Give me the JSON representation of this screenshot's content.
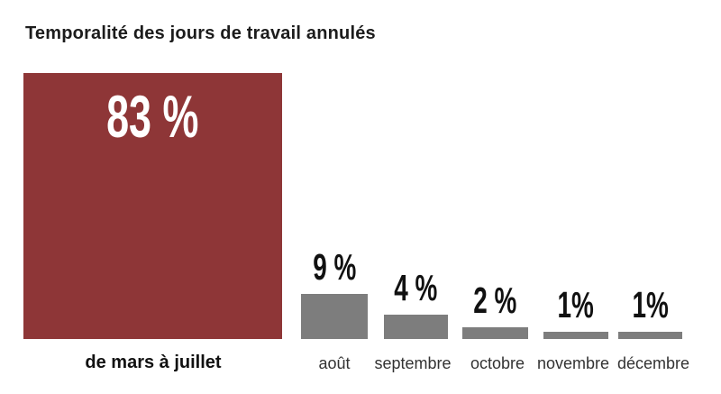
{
  "title": "Temporalité des jours de travail annulés",
  "chart_data": {
    "type": "bar",
    "title": "Temporalité des jours de travail annulés",
    "categories": [
      "de mars à juillet",
      "août",
      "septembre",
      "octobre",
      "novembre",
      "décembre"
    ],
    "values": [
      83,
      9,
      4,
      2,
      1,
      1
    ],
    "unit": "%",
    "value_labels": [
      "83 %",
      "9 %",
      "4 %",
      "2 %",
      "1%",
      "1%"
    ],
    "xlabel": "",
    "ylabel": "",
    "ylim": [
      0,
      100
    ],
    "grid": false,
    "legend": false,
    "highlight_index": 0,
    "colors": {
      "highlight_bar": "#8E3637",
      "default_bar": "#7D7D7D",
      "big_value_text": "#FFFFFF",
      "value_text": "#111111",
      "title_text": "#1C1C1C",
      "category_text": "#333333"
    }
  }
}
